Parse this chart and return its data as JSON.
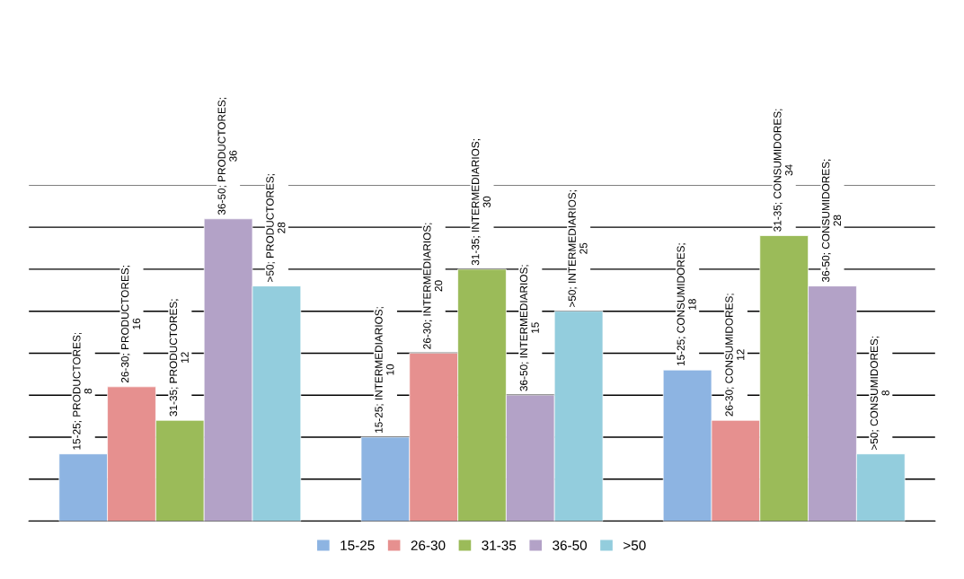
{
  "chart_data": {
    "type": "bar",
    "categories": [
      null,
      null,
      null
    ],
    "series": [
      {
        "name": "15-25",
        "color": "#8db4e2",
        "values": [
          8,
          10,
          18
        ],
        "value_labels": [
          "15-25; PRODUCTORES; 8",
          "15-25; INTERMEDIARIOS; 10",
          "15-25; CONSUMIDORES; 18"
        ]
      },
      {
        "name": "26-30",
        "color": "#e6908f",
        "values": [
          16,
          20,
          12
        ],
        "value_labels": [
          "26-30; PRODUCTORES; 16",
          "26-30; INTERMEDIARIOS; 20",
          "26-30; CONSUMIDORES; 12"
        ]
      },
      {
        "name": "31-35",
        "color": "#9bbb59",
        "values": [
          12,
          30,
          34
        ],
        "value_labels": [
          "31-35; PRODUCTORES; 12",
          "31-35; INTERMEDIARIOS; 30",
          "31-35; CONSUMIDORES; 34"
        ]
      },
      {
        "name": "36-50",
        "color": "#b3a2c7",
        "values": [
          36,
          15,
          28
        ],
        "value_labels": [
          "36-50; PRODUCTORES; 36",
          "36-50; INTERMEDIARIOS; 15",
          "36-50; CONSUMIDORES; 28"
        ]
      },
      {
        "name": ">50",
        "color": "#93cddd",
        "values": [
          28,
          25,
          8
        ],
        "value_labels": [
          ">50; PRODUCTORES; 28",
          ">50; INTERMEDIARIOS; 25",
          ">50; CONSUMIDORES; 8"
        ]
      }
    ],
    "ylim": [
      0,
      40
    ],
    "yticks": [
      {
        "value": 0,
        "label": null
      },
      {
        "value": 5,
        "label": null
      },
      {
        "value": 10,
        "label": null
      },
      {
        "value": 15,
        "label": null
      },
      {
        "value": 20,
        "label": null
      },
      {
        "value": 25,
        "label": null
      },
      {
        "value": 30,
        "label": null
      },
      {
        "value": 35,
        "label": null
      },
      {
        "value": 40,
        "label": null
      }
    ],
    "grid": "y",
    "legend": "bottom"
  }
}
